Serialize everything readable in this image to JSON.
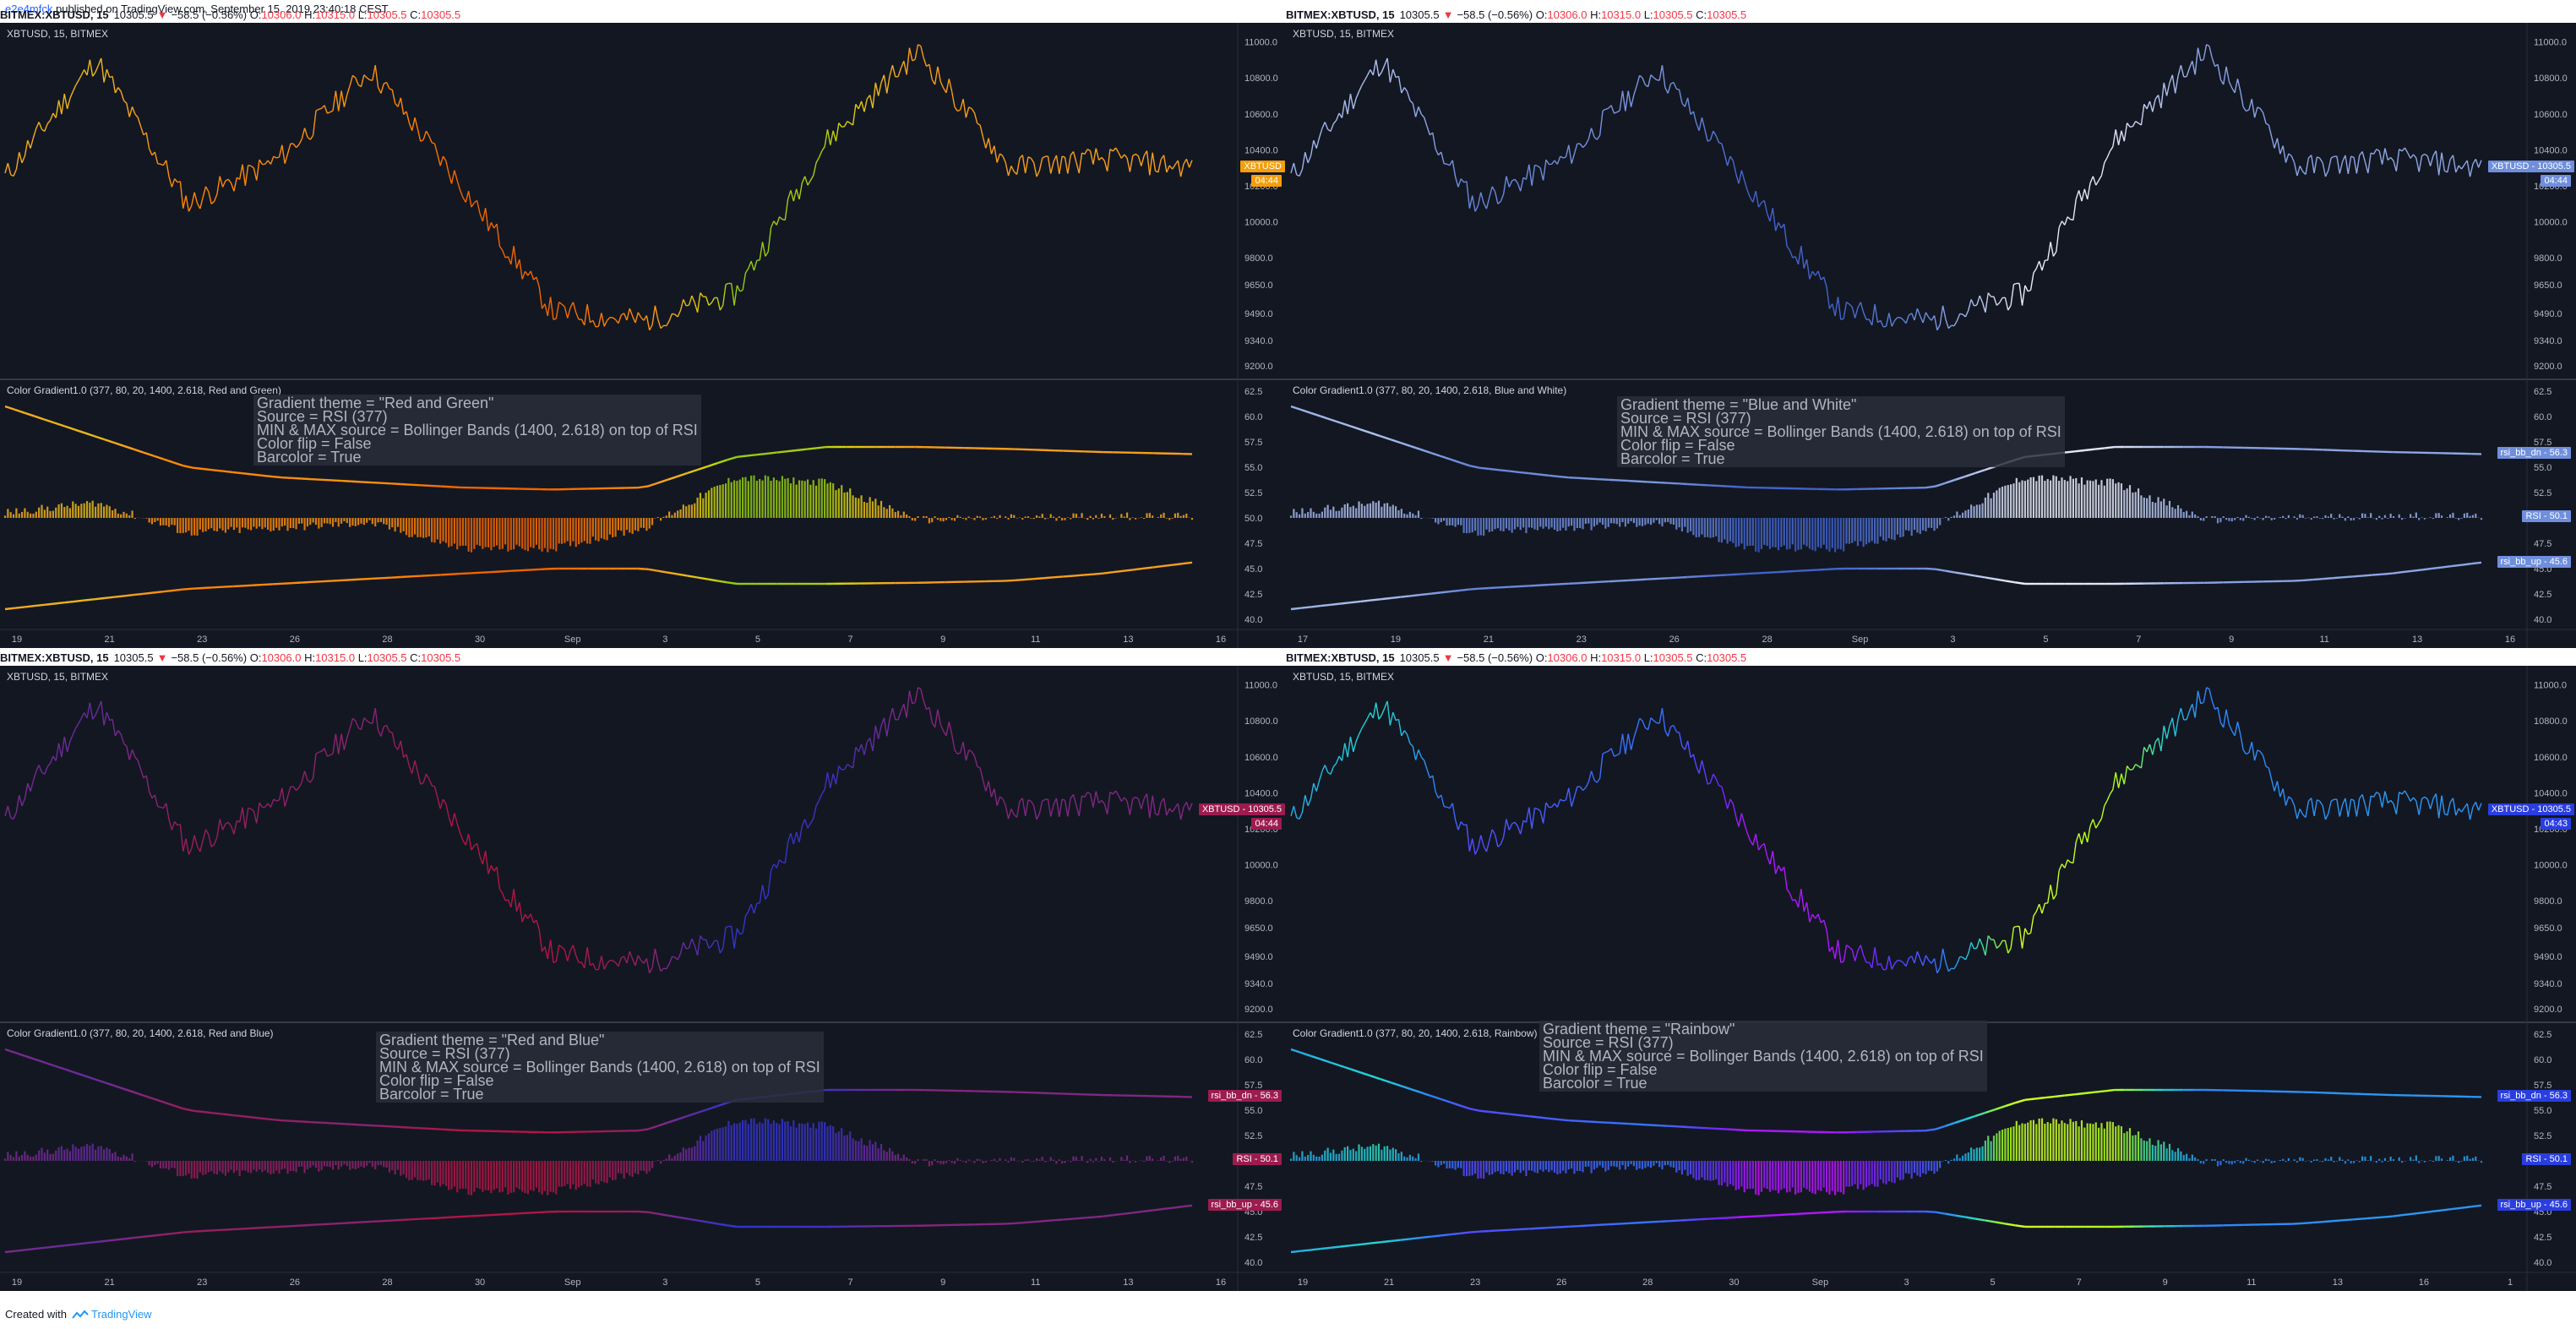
{
  "header": {
    "author": "e2e4mfck",
    "published": " published on TradingView.com, September 15, 2019 23:40:18 CEST"
  },
  "footer": {
    "created_with": "Created with",
    "brand": "TradingView"
  },
  "symbol_bar": {
    "symbol": "BITMEX:XBTUSD, 15",
    "price": "10305.5",
    "arrow": "▼",
    "change": "−58.5 (−0.56%)",
    "o_label": "O:",
    "o_value": "10306.0",
    "h_label": "H:",
    "h_value": "10315.0",
    "l_label": "L:",
    "l_value": "10305.5",
    "c_label": "C:",
    "c_value": "10305.5"
  },
  "price_axis_ticks": [
    "11000.0",
    "10800.0",
    "10600.0",
    "10400.0",
    "10200.0",
    "10000.0",
    "9800.0",
    "9650.0",
    "9490.0",
    "9340.0",
    "9200.0"
  ],
  "osc_axis_ticks": [
    "62.5",
    "60.0",
    "57.5",
    "55.0",
    "52.5",
    "50.0",
    "47.5",
    "45.0",
    "42.5",
    "40.0"
  ],
  "panels": [
    {
      "main_label": "XBTUSD, 15, BITMEX",
      "osc_label": "Color Gradient1.0 (377, 80, 20, 1400, 2.618, Red and Green)",
      "theme_line": "Gradient theme = \"Red and Green\"",
      "x_ticks": [
        "19",
        "21",
        "23",
        "26",
        "28",
        "30",
        "Sep",
        "3",
        "5",
        "7",
        "9",
        "11",
        "13",
        "16"
      ],
      "price_tag": "XBTUSD",
      "price_tag2": "04:44",
      "tag_color": "#f59e0b",
      "tags": []
    },
    {
      "main_label": "XBTUSD, 15, BITMEX",
      "osc_label": "Color Gradient1.0 (377, 80, 20, 1400, 2.618, Blue and White)",
      "theme_line": "Gradient theme = \"Blue and White\"",
      "x_ticks": [
        "17",
        "19",
        "21",
        "23",
        "26",
        "28",
        "Sep",
        "3",
        "5",
        "7",
        "9",
        "11",
        "13",
        "16"
      ],
      "price_tag": "XBTUSD - 10305.5",
      "price_tag2": "04:44",
      "tag_color": "#6f8fdd",
      "tags": [
        "rsi_bb_dn - 56.3",
        "RSI - 50.1",
        "rsi_bb_up - 45.6"
      ]
    },
    {
      "main_label": "XBTUSD, 15, BITMEX",
      "osc_label": "Color Gradient1.0 (377, 80, 20, 1400, 2.618, Red and Blue)",
      "theme_line": "Gradient theme = \"Red and Blue\"",
      "x_ticks": [
        "19",
        "21",
        "23",
        "26",
        "28",
        "30",
        "Sep",
        "3",
        "5",
        "7",
        "9",
        "11",
        "13",
        "16"
      ],
      "price_tag": "XBTUSD - 10305.5",
      "price_tag2": "04:44",
      "tag_color": "#9c1c4f",
      "tags": [
        "rsi_bb_dn - 56.3",
        "RSI - 50.1",
        "rsi_bb_up - 45.6"
      ]
    },
    {
      "main_label": "XBTUSD, 15, BITMEX",
      "osc_label": "Color Gradient1.0 (377, 80, 20, 1400, 2.618, Rainbow)",
      "theme_line": "Gradient theme = \"Rainbow\"",
      "x_ticks": [
        "19",
        "21",
        "23",
        "26",
        "28",
        "30",
        "Sep",
        "3",
        "5",
        "7",
        "9",
        "11",
        "13",
        "16",
        "1"
      ],
      "price_tag": "XBTUSD - 10305.5",
      "price_tag2": "04:43",
      "tag_color": "#2a3ee0",
      "tags": [
        "rsi_bb_dn - 56.3",
        "RSI - 50.1",
        "rsi_bb_up - 45.6"
      ]
    }
  ],
  "info_common": {
    "source": "Source = RSI (377)",
    "minmax": "MIN & MAX source = Bollinger Bands (1400, 2.618) on top of RSI",
    "flip": "Color flip = False",
    "barcolor": "Barcolor = True"
  },
  "themes": {
    "red_green": [
      "#e65100",
      "#ff7f00",
      "#f5a623",
      "#d4d40a",
      "#5bc21a"
    ],
    "blue_white": [
      "#2a4dc2",
      "#5f7fd6",
      "#96aee6",
      "#d0d9f2",
      "#ffffff"
    ],
    "red_blue": [
      "#c2113a",
      "#9c1c55",
      "#7a2a8a",
      "#4a2fb5",
      "#1f3adf"
    ],
    "rainbow": [
      "#ff00ff",
      "#6b2cff",
      "#2f7cff",
      "#21d4d4",
      "#a8ff1a",
      "#ffff33"
    ]
  },
  "chart_data": {
    "type": "line",
    "title": "XBTUSD, 15, BITMEX",
    "x": [
      "19",
      "21",
      "23",
      "26",
      "28",
      "30",
      "Sep",
      "3",
      "5",
      "7",
      "9",
      "11",
      "13",
      "16"
    ],
    "ylim": [
      9200,
      11050
    ],
    "series": [
      {
        "name": "XBTUSD",
        "values": [
          10250,
          10900,
          10100,
          10350,
          10850,
          10200,
          9500,
          9450,
          9600,
          10450,
          10950,
          10300,
          10350,
          10305.5
        ]
      }
    ],
    "oscillator": {
      "ylim": [
        40,
        62.5
      ],
      "series": [
        {
          "name": "rsi_bb_dn",
          "values": [
            61,
            58,
            55,
            54,
            53.5,
            53,
            52.8,
            53,
            56,
            57,
            57,
            56.8,
            56.5,
            56.3
          ]
        },
        {
          "name": "RSI",
          "values": [
            50.5,
            51.5,
            48.5,
            49,
            49.5,
            47,
            47,
            49,
            54,
            53.5,
            49.8,
            50,
            50.2,
            50.1
          ]
        },
        {
          "name": "rsi_bb_up",
          "values": [
            41,
            42,
            43,
            43.5,
            44,
            44.5,
            45,
            45,
            43.5,
            43.5,
            43.6,
            43.8,
            44.5,
            45.6
          ]
        }
      ]
    }
  }
}
